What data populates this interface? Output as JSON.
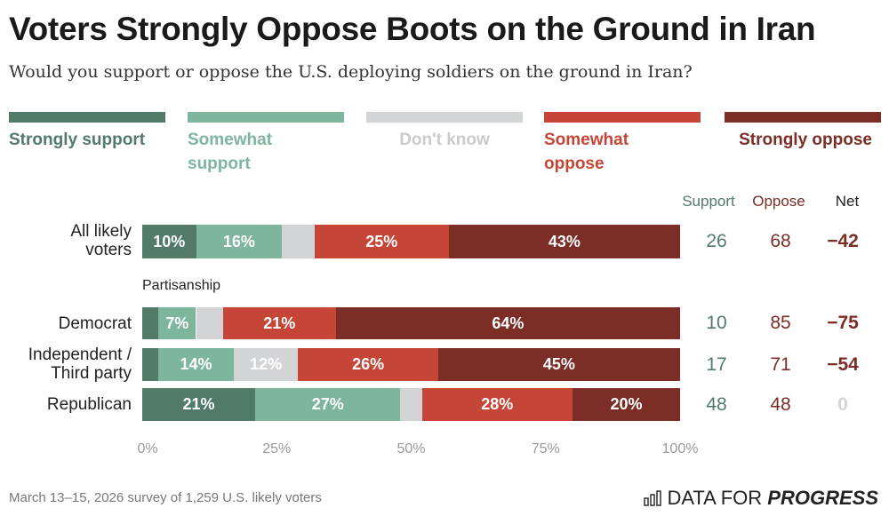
{
  "title": "Voters Strongly Oppose Boots on the Ground in Iran",
  "subtitle": "Would you support or oppose the U.S. deploying soldiers on the ground in Iran?",
  "footnote": "March 13–15, 2026 survey of 1,259 U.S. likely voters",
  "logo": {
    "text_regular": "DATA FOR ",
    "text_bold": "PROGRESS",
    "icon": "bar-chart-icon"
  },
  "chart_data": {
    "type": "bar",
    "orientation": "horizontal",
    "stacked": true,
    "title": "Voters Strongly Oppose Boots on the Ground in Iran",
    "xlim": [
      0,
      100
    ],
    "ticks": [
      "0%",
      "25%",
      "50%",
      "75%",
      "100%"
    ],
    "legend": [
      "Strongly support",
      "Somewhat support",
      "Don't know",
      "Somewhat oppose",
      "Strongly oppose"
    ],
    "colors": [
      "#527a69",
      "#7db59d",
      "#d3d4d5",
      "#c54637",
      "#7b2d26"
    ],
    "group_label": "Partisanship",
    "columns": {
      "support": "Support",
      "oppose": "Oppose",
      "net": "Net"
    },
    "column_colors": {
      "support": "#527a69",
      "oppose": "#7b2d26",
      "net_neg": "#7b2d26",
      "net_zero": "#d3d4d5"
    },
    "categories": [
      "All likely voters",
      "Democrat",
      "Independent / Third party",
      "Republican"
    ],
    "series": [
      {
        "name": "Strongly support",
        "values": [
          10,
          3,
          3,
          21
        ]
      },
      {
        "name": "Somewhat support",
        "values": [
          16,
          7,
          14,
          27
        ]
      },
      {
        "name": "Don't know",
        "values": [
          6,
          5,
          12,
          4
        ]
      },
      {
        "name": "Somewhat oppose",
        "values": [
          25,
          21,
          26,
          28
        ]
      },
      {
        "name": "Strongly oppose",
        "values": [
          43,
          64,
          45,
          20
        ]
      }
    ],
    "labels": [
      [
        "10%",
        "16%",
        "",
        "25%",
        "43%"
      ],
      [
        "",
        "7%",
        "",
        "21%",
        "64%"
      ],
      [
        "",
        "14%",
        "12%",
        "26%",
        "45%"
      ],
      [
        "21%",
        "27%",
        "",
        "28%",
        "20%"
      ]
    ],
    "support": [
      "26",
      "10",
      "17",
      "48"
    ],
    "oppose": [
      "68",
      "85",
      "71",
      "48"
    ],
    "net": [
      "−42",
      "−75",
      "−54",
      "0"
    ]
  }
}
